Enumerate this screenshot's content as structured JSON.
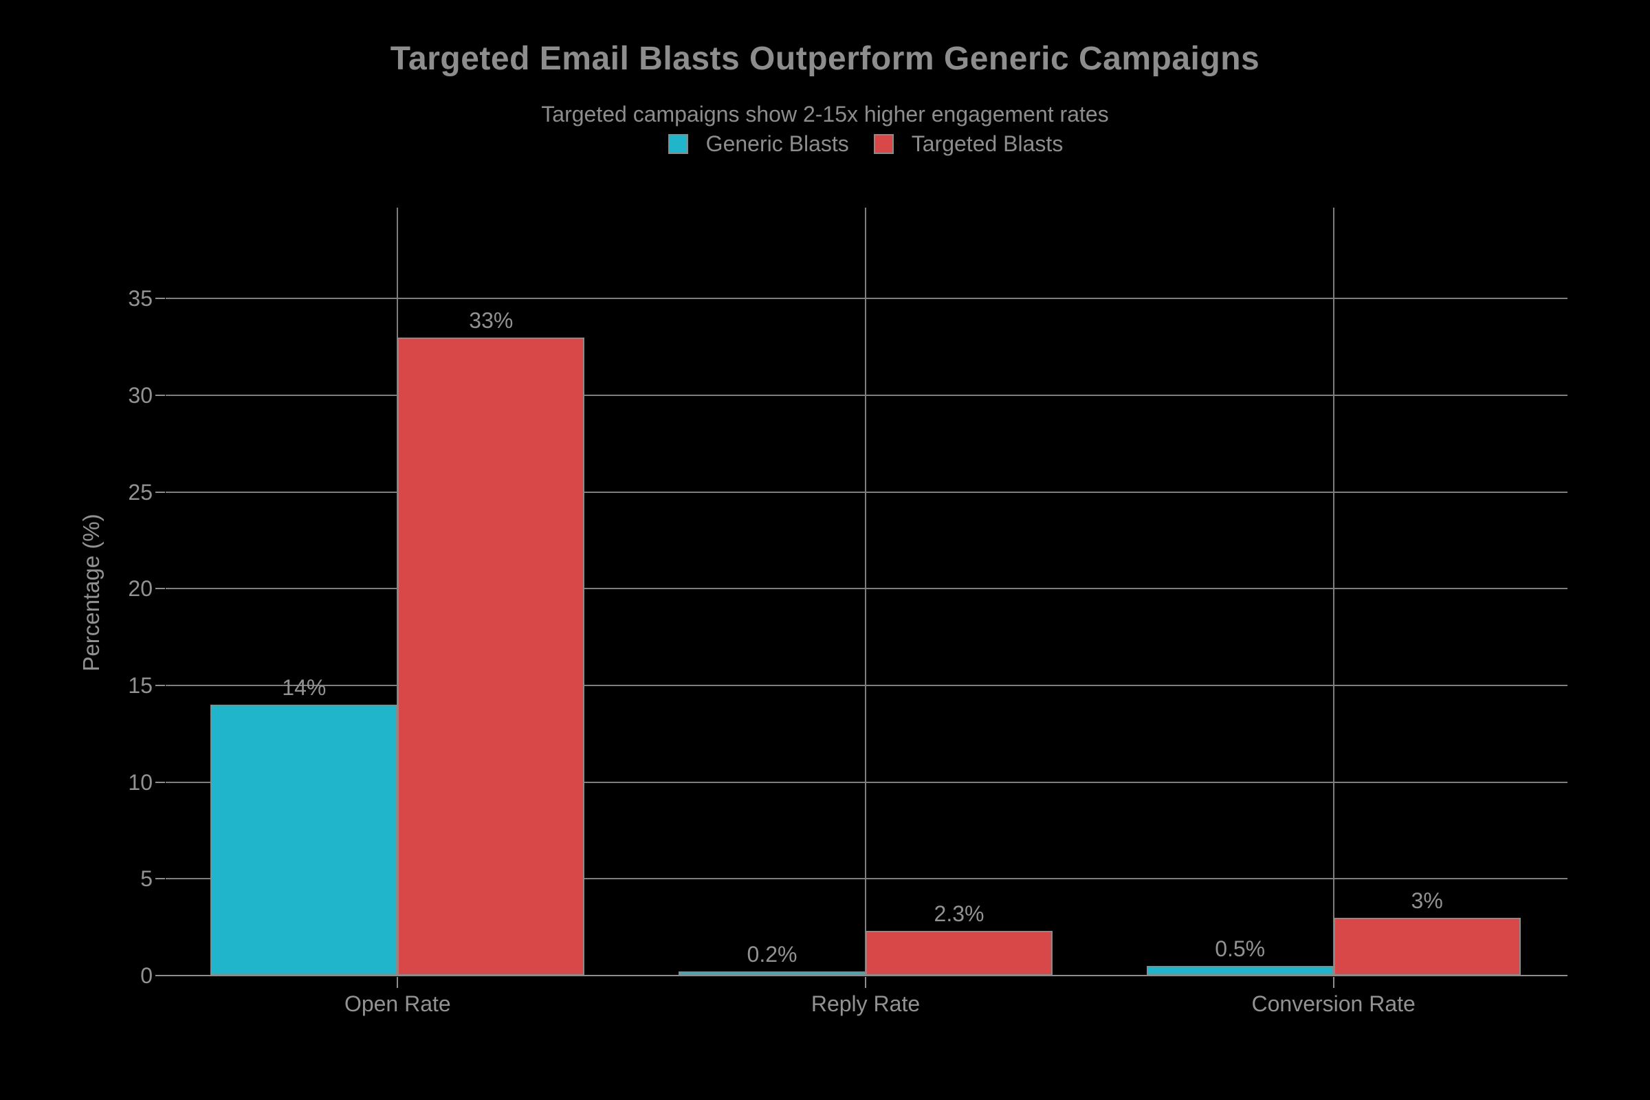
{
  "chart_data": {
    "type": "bar",
    "title": "Targeted Email Blasts Outperform Generic Campaigns",
    "subtitle": "Targeted campaigns show 2-15x higher engagement rates",
    "ylabel": "Percentage (%)",
    "categories": [
      "Open Rate",
      "Reply Rate",
      "Conversion Rate"
    ],
    "series": [
      {
        "name": "Generic Blasts",
        "color": "#21b5cc",
        "values": [
          14,
          0.2,
          0.5
        ],
        "labels": [
          "14%",
          "0.2%",
          "0.5%"
        ]
      },
      {
        "name": "Targeted Blasts",
        "color": "#d94848",
        "values": [
          33,
          2.3,
          3
        ],
        "labels": [
          "33%",
          "2.3%",
          "3%"
        ]
      }
    ],
    "yticks": [
      0,
      5,
      10,
      15,
      20,
      25,
      30,
      35
    ],
    "ylim": [
      0,
      39.7
    ],
    "grid": true,
    "legend_position": "top-center",
    "background_color": "#000000",
    "text_color": "#929292",
    "grid_color": "#7e7e7e"
  }
}
